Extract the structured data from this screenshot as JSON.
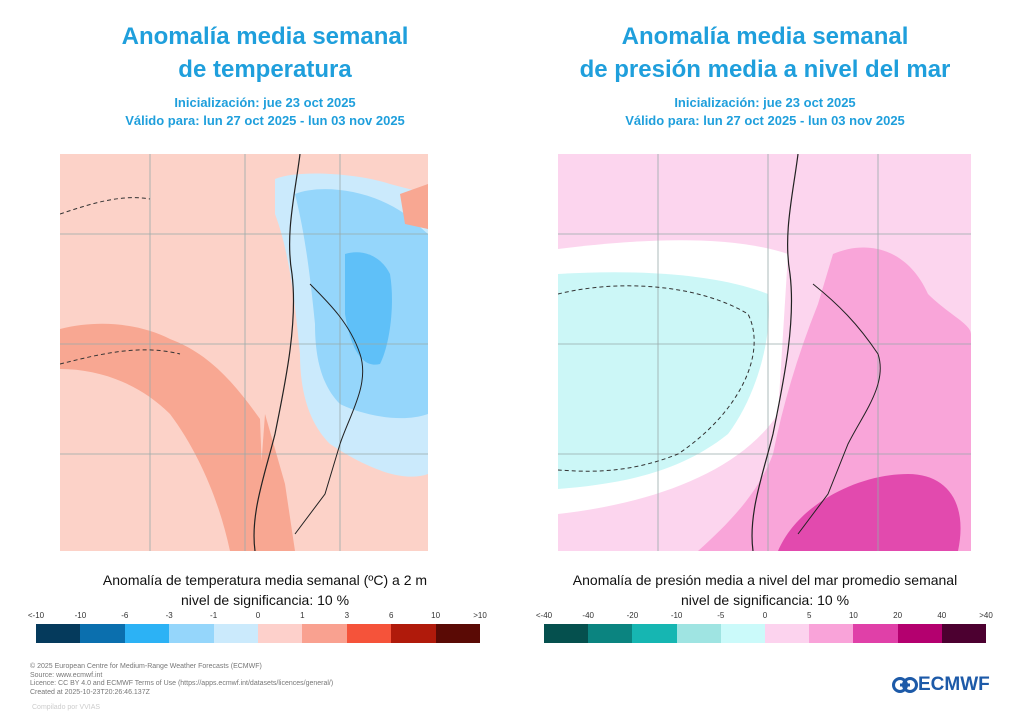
{
  "left": {
    "title_line1": "Anomalía media semanal",
    "title_line2": "de temperatura",
    "init": "Inicialización: jue 23 oct 2025",
    "valid": "Válido para: lun 27 oct 2025 - lun 03 nov 2025",
    "caption": "Anomalía de temperatura media semanal (ºC) a 2 m",
    "significance": "nivel de significancia: 10 %",
    "colorbar": {
      "ticks": [
        "<-10",
        "-10",
        "-6",
        "-3",
        "-1",
        "0",
        "1",
        "3",
        "6",
        "10",
        ">10"
      ],
      "colors": [
        "#053a5c",
        "#0b6fae",
        "#2cb2f5",
        "#95d6fb",
        "#cbeafc",
        "#fdd0cb",
        "#f9a190",
        "#f5533a",
        "#b01a0b",
        "#5a0a05"
      ]
    }
  },
  "right": {
    "title_line1": "Anomalía media semanal",
    "title_line2": "de presión media a nivel del mar",
    "init": "Inicialización: jue 23 oct 2025",
    "valid": "Válido para: lun 27 oct 2025 - lun 03 nov 2025",
    "caption": "Anomalía de presión media a nivel del mar promedio semanal",
    "significance": "nivel de significancia: 10 %",
    "colorbar": {
      "ticks": [
        "<-40",
        "-40",
        "-20",
        "-10",
        "-5",
        "0",
        "5",
        "10",
        "20",
        "40",
        ">40"
      ],
      "colors": [
        "#05504e",
        "#0b8480",
        "#16b6b2",
        "#9fe4e2",
        "#cbfafa",
        "#fcd3ee",
        "#f9a3d9",
        "#e040a8",
        "#b4006f",
        "#4c0030"
      ]
    }
  },
  "footer": {
    "lines": [
      "© 2025 European Centre for Medium-Range Weather Forecasts (ECMWF)",
      "Source: www.ecmwf.int",
      "Licence: CC BY 4.0 and ECMWF Terms of Use (https://apps.ecmwf.int/datasets/licences/general/)",
      "Created at 2025-10-23T20:26:46.137Z"
    ],
    "compiled": "Compilado por VVIAS",
    "logo": "ECMWF"
  }
}
